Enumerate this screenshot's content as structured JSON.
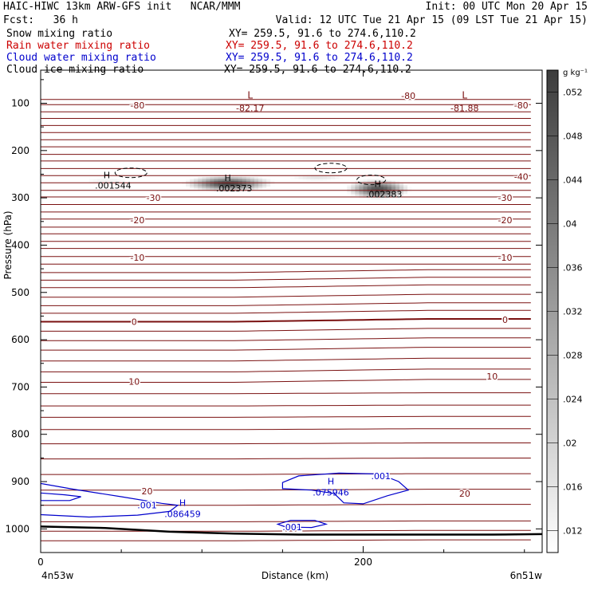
{
  "header": {
    "title": "HAIC-HIWC 13km ARW-GFS init   NCAR/MMM",
    "init": "Init: 00 UTC Mon 20 Apr 15",
    "fcst": "Fcst:   36 h",
    "valid": "Valid: 12 UTC Tue 21 Apr 15 (09 LST Tue 21 Apr 15)"
  },
  "colors": {
    "background": "#ffffff",
    "rain": "#cc0000",
    "cloud_water": "#0000cc",
    "isotherm": "#7a1010",
    "ground": "#000000"
  },
  "fields": [
    {
      "name": "Snow mixing ratio",
      "xy": "XY= 259.5, 91.6 to 274.6,110.2",
      "color": "#000000"
    },
    {
      "name": "Rain water mixing ratio",
      "xy": "XY= 259.5, 91.6 to 274.6,110.2",
      "color": "#cc0000"
    },
    {
      "name": "Cloud water mixing ratio",
      "xy": "XY= 259.5, 91.6 to 274.6,110.2",
      "color": "#0000cc"
    },
    {
      "name": "Cloud ice mixing ratio",
      "xy": "XY= 259.5, 91.6 to 274.6,110.2",
      "color": "#000000"
    }
  ],
  "chart_data": {
    "type": "heatmap",
    "ylabel": "Pressure (hPa)",
    "xlabel": "Distance (km)",
    "x_ticks": [
      0,
      200
    ],
    "x_range": [
      0,
      311
    ],
    "y_ticks": [
      100,
      200,
      300,
      400,
      500,
      600,
      700,
      800,
      900,
      1000
    ],
    "y_range": [
      30,
      1050
    ],
    "left_endpoint": "4n53w",
    "right_endpoint": "6n51w",
    "colorbar": {
      "unit": "g kg⁻¹",
      "ticks": [
        ".052",
        ".048",
        ".044",
        ".04",
        ".036",
        ".032",
        ".028",
        ".024",
        ".02",
        ".016",
        ".012"
      ],
      "min": 0.01,
      "max": 0.054
    },
    "isotherm_levels": [
      {
        "p": 92
      },
      {
        "p": 103,
        "label": "-80"
      },
      {
        "p": 118
      },
      {
        "p": 132
      },
      {
        "p": 147
      },
      {
        "p": 162
      },
      {
        "p": 177
      },
      {
        "p": 192
      },
      {
        "p": 208
      },
      {
        "p": 222
      },
      {
        "p": 238
      },
      {
        "p": 253,
        "label": "-40"
      },
      {
        "p": 268
      },
      {
        "p": 284
      },
      {
        "p": 298,
        "label": "-30"
      },
      {
        "p": 314
      },
      {
        "p": 330
      },
      {
        "p": 345,
        "label": "-20"
      },
      {
        "p": 362
      },
      {
        "p": 376
      },
      {
        "p": 392
      },
      {
        "p": 407
      },
      {
        "p": 424,
        "label": "-10"
      },
      {
        "p": 440
      },
      {
        "p": 458
      },
      {
        "p": 474
      },
      {
        "p": 490
      },
      {
        "p": 510
      },
      {
        "p": 528
      },
      {
        "p": 544
      },
      {
        "p": 562,
        "label": "0",
        "emphasis": true
      },
      {
        "p": 582
      },
      {
        "p": 602
      },
      {
        "p": 622
      },
      {
        "p": 645
      },
      {
        "p": 668
      },
      {
        "p": 690,
        "label": "10"
      },
      {
        "p": 714
      },
      {
        "p": 740
      },
      {
        "p": 764
      },
      {
        "p": 790
      },
      {
        "p": 820
      },
      {
        "p": 852
      },
      {
        "p": 885
      },
      {
        "p": 918,
        "label": "20"
      },
      {
        "p": 950
      },
      {
        "p": 985
      },
      {
        "p": 1005
      },
      {
        "p": 1025
      }
    ],
    "temperature_labels": [
      {
        "text": "-80",
        "x": 60,
        "p": 104
      },
      {
        "text": "-80",
        "x": 228,
        "p": 84
      },
      {
        "text": "-80",
        "x": 298,
        "p": 104
      },
      {
        "text": "-40",
        "x": 298,
        "p": 255
      },
      {
        "text": "-30",
        "x": 70,
        "p": 300
      },
      {
        "text": "-30",
        "x": 288,
        "p": 300
      },
      {
        "text": "-20",
        "x": 60,
        "p": 347
      },
      {
        "text": "-20",
        "x": 288,
        "p": 347
      },
      {
        "text": "-10",
        "x": 60,
        "p": 426
      },
      {
        "text": "-10",
        "x": 288,
        "p": 426
      },
      {
        "text": "0",
        "x": 58,
        "p": 562
      },
      {
        "text": "0",
        "x": 288,
        "p": 558
      },
      {
        "text": "10",
        "x": 58,
        "p": 688
      },
      {
        "text": "10",
        "x": 280,
        "p": 677
      },
      {
        "text": "20",
        "x": 66,
        "p": 920
      },
      {
        "text": "20",
        "x": 263,
        "p": 925
      }
    ],
    "lows": [
      {
        "label": "L",
        "value": "-82.17",
        "x": 123,
        "p": 100
      },
      {
        "label": "L",
        "value": "-81.88",
        "x": 256,
        "p": 100
      }
    ],
    "snow_maxima": [
      {
        "label": "H",
        "value": ".002373",
        "x": 115,
        "p": 268,
        "sx": 22,
        "sp": 14,
        "peak": 0.052
      },
      {
        "label": "H",
        "value": ".002383",
        "x": 208,
        "p": 280,
        "sx": 16,
        "sp": 17,
        "peak": 0.05
      },
      {
        "label": "H",
        "value": ".001544",
        "x": 40,
        "p": 262,
        "sx": 26,
        "sp": 12,
        "peak": 0.013
      },
      {
        "label": "",
        "value": "",
        "x": 170,
        "p": 255,
        "sx": 22,
        "sp": 9,
        "peak": 0.016
      }
    ],
    "cloud_water_maxima": [
      {
        "label": "H",
        "value": ".086459",
        "x": 88,
        "p": 958
      },
      {
        "label": "H",
        "value": ".075946",
        "x": 180,
        "p": 913
      }
    ],
    "cloud_water_contour_label": ".001",
    "cloud_water_contour_labels": [
      {
        "text": ".001",
        "x": 66,
        "p": 950
      },
      {
        "text": ".001",
        "x": 211,
        "p": 888
      },
      {
        "text": ".001",
        "x": 156,
        "p": 996
      }
    ],
    "ground_pressure": [
      {
        "x": 0,
        "p": 995
      },
      {
        "x": 40,
        "p": 998
      },
      {
        "x": 80,
        "p": 1006
      },
      {
        "x": 120,
        "p": 1010
      },
      {
        "x": 160,
        "p": 1012
      },
      {
        "x": 200,
        "p": 1012
      },
      {
        "x": 240,
        "p": 1012
      },
      {
        "x": 280,
        "p": 1012
      },
      {
        "x": 311,
        "p": 1011
      }
    ]
  }
}
